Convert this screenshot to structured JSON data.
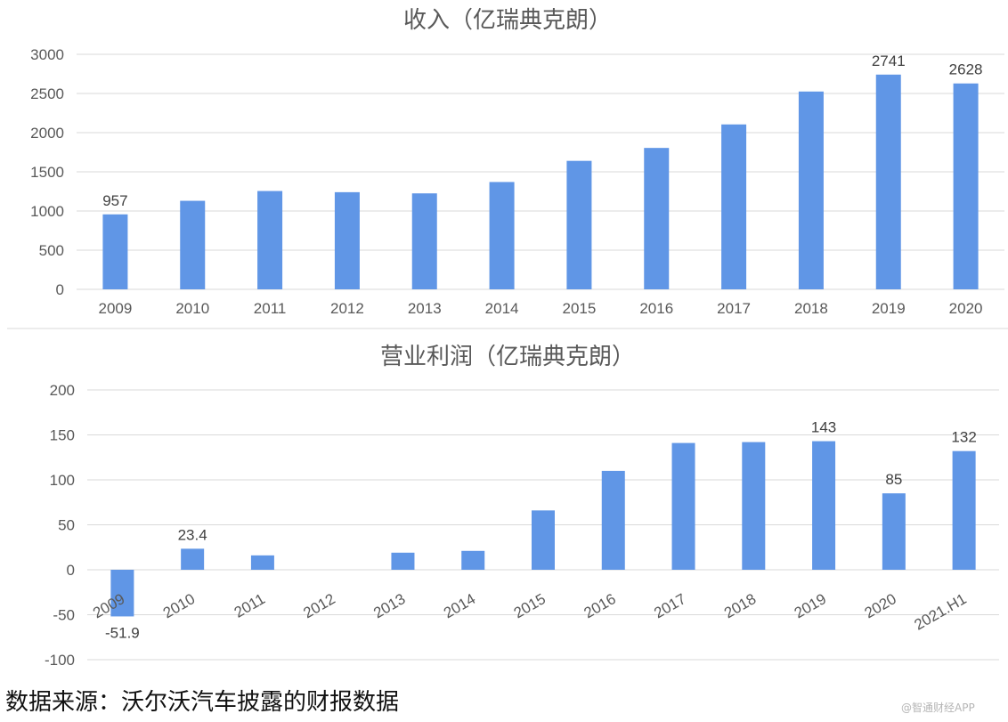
{
  "chart_data": [
    {
      "type": "bar",
      "title": "收入（亿瑞典克朗）",
      "categories": [
        "2009",
        "2010",
        "2011",
        "2012",
        "2013",
        "2014",
        "2015",
        "2016",
        "2017",
        "2018",
        "2019",
        "2020"
      ],
      "values": [
        957,
        1130,
        1255,
        1240,
        1225,
        1370,
        1640,
        1805,
        2105,
        2525,
        2741,
        2628
      ],
      "data_labels": {
        "0": "957",
        "10": "2741",
        "11": "2628"
      },
      "yticks": [
        0,
        500,
        1000,
        1500,
        2000,
        2500,
        3000
      ],
      "ylim": [
        0,
        3000
      ],
      "grid": true,
      "legend": "none",
      "color": "#6096e6"
    },
    {
      "type": "bar",
      "title": "营业利润（亿瑞典克朗）",
      "categories": [
        "2009",
        "2010",
        "2011",
        "2012",
        "2013",
        "2014",
        "2015",
        "2016",
        "2017",
        "2018",
        "2019",
        "2020",
        "2021.H1"
      ],
      "values": [
        -51.9,
        23.4,
        16,
        0,
        19,
        21,
        66,
        110,
        141,
        142,
        143,
        85,
        132
      ],
      "data_labels": {
        "0": "-51.9",
        "1": "23.4",
        "10": "143",
        "11": "85",
        "12": "132"
      },
      "yticks": [
        -100,
        -50,
        0,
        50,
        100,
        150,
        200
      ],
      "ylim": [
        -100,
        200
      ],
      "grid": true,
      "legend": "none",
      "color": "#6096e6"
    }
  ],
  "source_text": "数据来源：沃尔沃汽车披露的财报数据",
  "watermark_text": "@智通财经APP"
}
